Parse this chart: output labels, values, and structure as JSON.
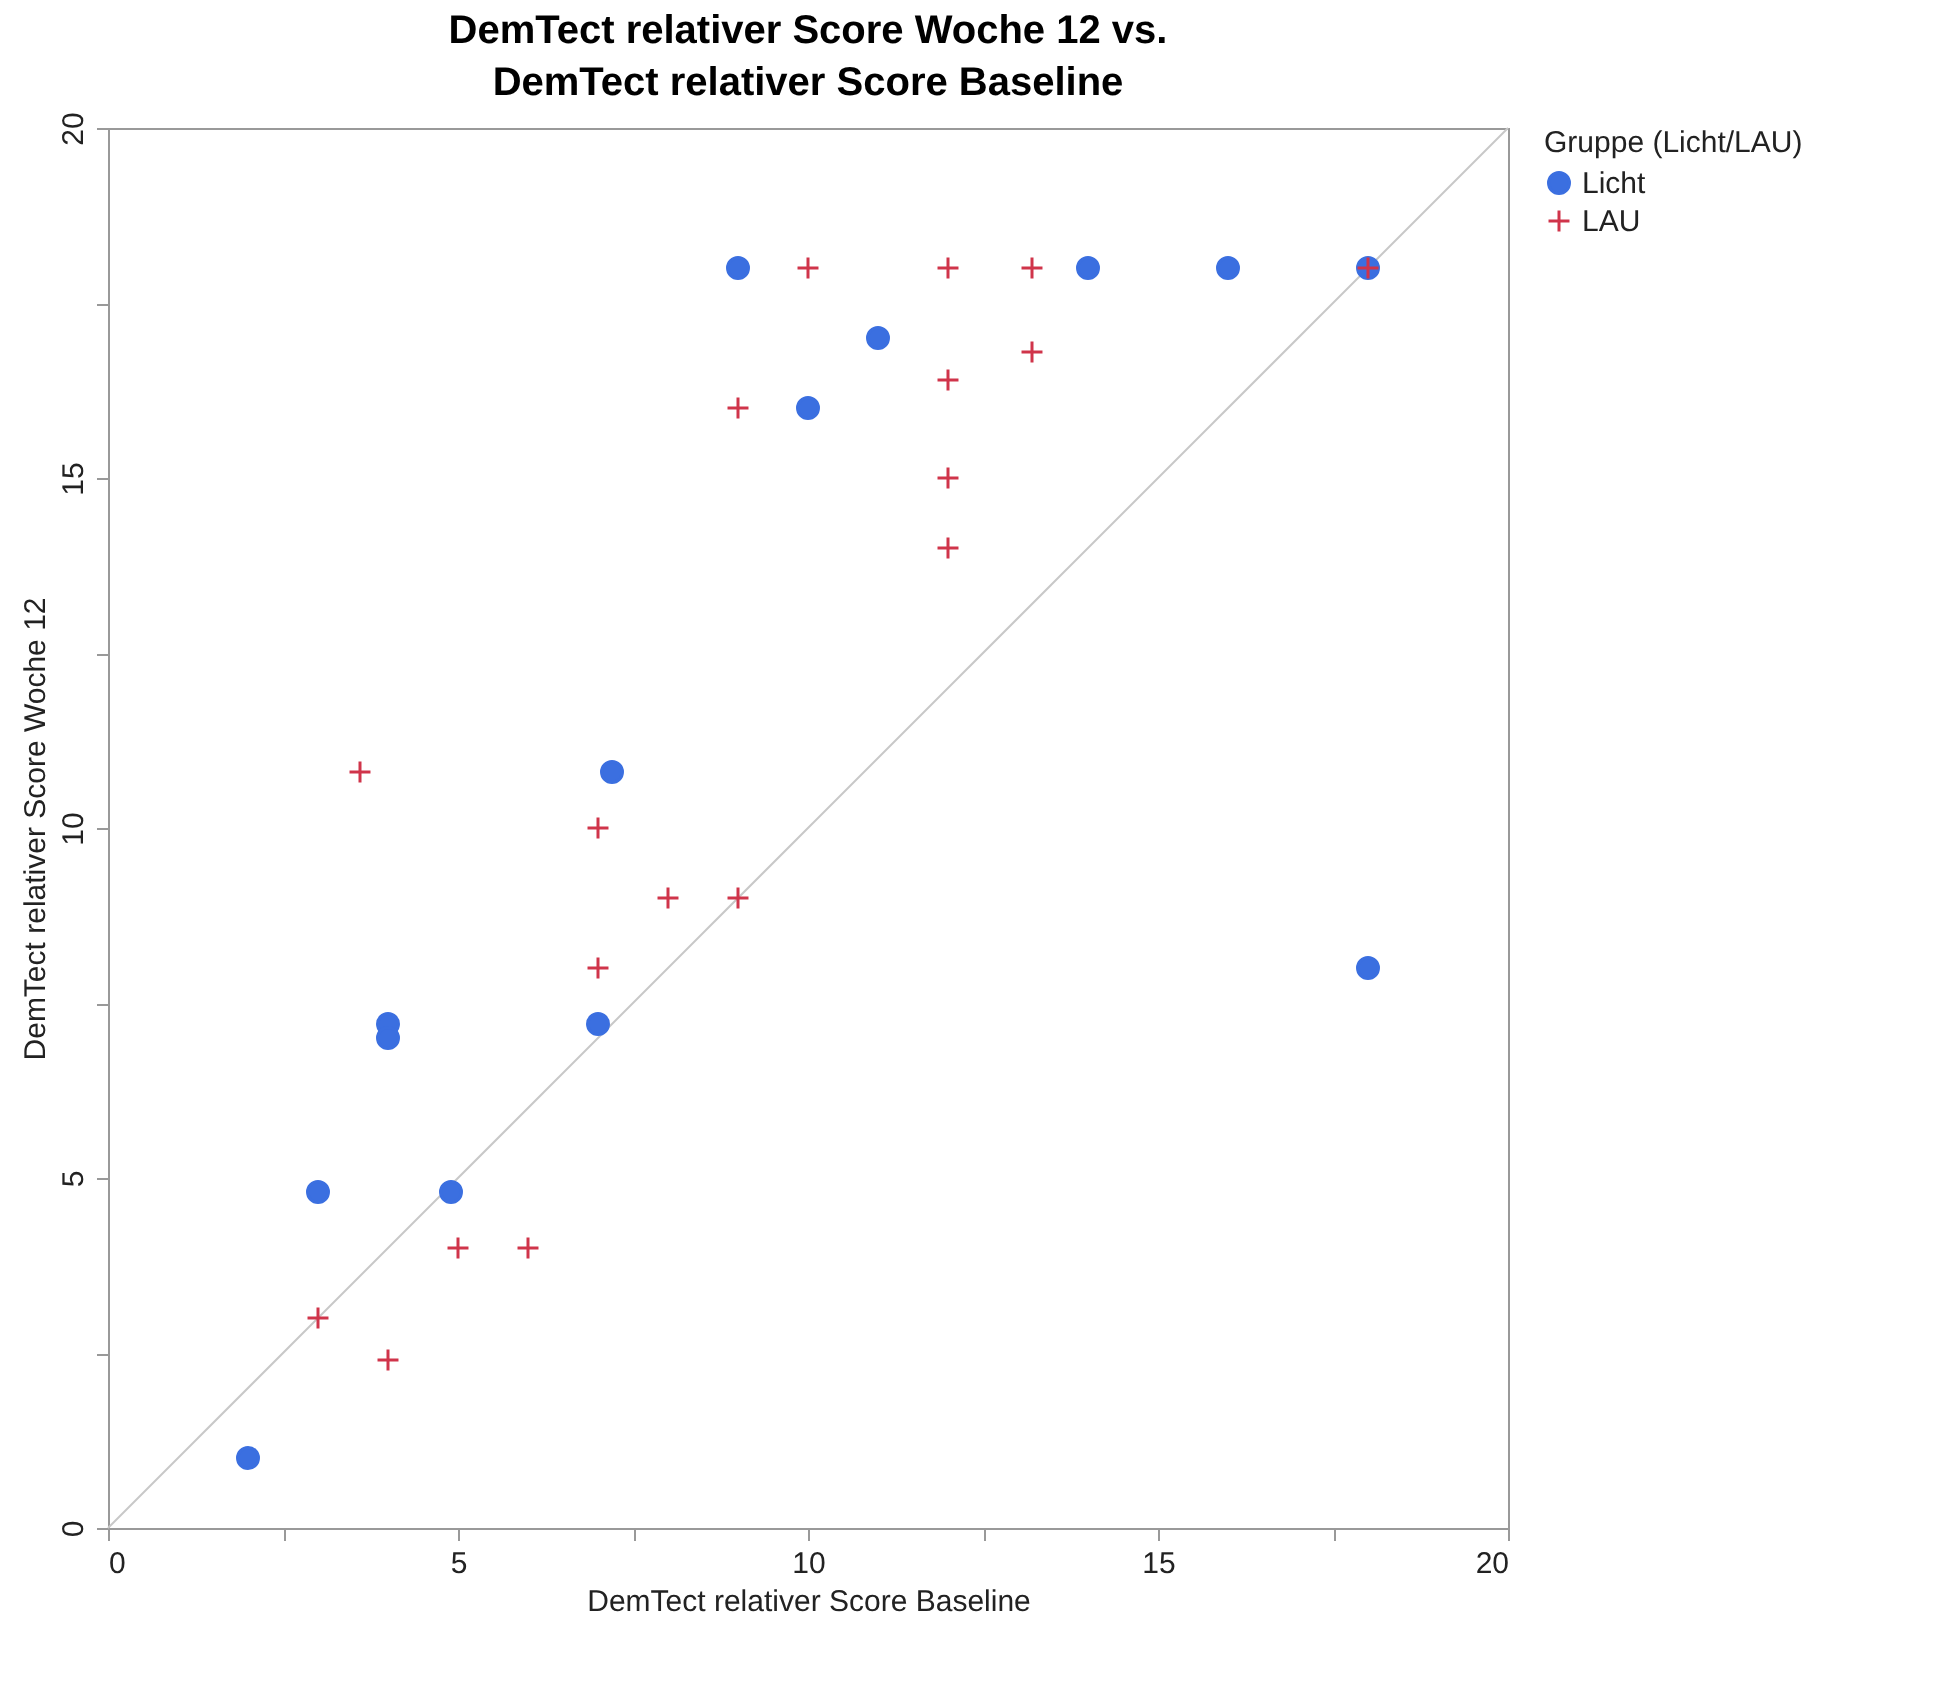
{
  "chart_data": {
    "type": "scatter",
    "title": "DemTect relativer Score Woche 12 vs. DemTect relativer Score Baseline",
    "xlabel": "DemTect relativer Score Baseline",
    "ylabel": "DemTect relativer Score Woche 12",
    "legend_title": "Gruppe (Licht/LAU)",
    "legend": "top right",
    "grid": false,
    "xlim": [
      0,
      20
    ],
    "ylim": [
      0,
      20
    ],
    "xticks": [
      0,
      {
        "value": 2.5,
        "label": null
      },
      5,
      {
        "value": 7.5,
        "label": null
      },
      10,
      {
        "value": 12.5,
        "label": null
      },
      15,
      {
        "value": 17.5,
        "label": null
      },
      20
    ],
    "yticks": [
      0,
      {
        "value": 2.5,
        "label": null
      },
      5,
      {
        "value": 7.5,
        "label": null
      },
      10,
      {
        "value": 12.5,
        "label": null
      },
      15,
      {
        "value": 17.5,
        "label": null
      },
      20
    ],
    "series": [
      {
        "type": "line",
        "color": "#c8c8c8",
        "x": [
          0,
          20
        ],
        "values": [
          0,
          20
        ]
      },
      {
        "name": "Licht",
        "marker": "circle",
        "color": "#3b6fe0",
        "x": [
          9,
          11,
          10,
          14,
          16,
          18,
          7.2,
          4,
          4,
          7,
          3,
          4.9,
          2,
          18
        ],
        "values": [
          18,
          17,
          16,
          18,
          18,
          18,
          10.8,
          7.2,
          7.0,
          7.2,
          4.8,
          4.8,
          1,
          8
        ]
      },
      {
        "name": "LAU",
        "marker": "cross",
        "color": "#d0344a",
        "x": [
          10,
          12,
          13.2,
          18,
          9,
          12,
          13.2,
          12,
          12,
          3.6,
          7,
          8,
          9,
          7,
          5,
          6,
          3,
          4
        ],
        "values": [
          18,
          18,
          18,
          18,
          16,
          16.4,
          16.8,
          15,
          14,
          10.8,
          10,
          9,
          9,
          8,
          4,
          4,
          3,
          2.4
        ]
      }
    ]
  }
}
